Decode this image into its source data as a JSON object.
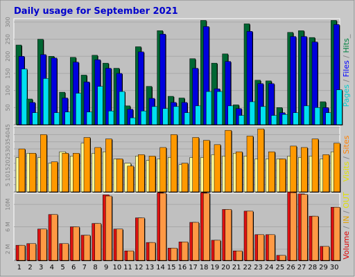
{
  "chart_data": {
    "type": "bar",
    "title": "Daily usage for September 2021",
    "categories": [
      "1",
      "2",
      "3",
      "4",
      "5",
      "6",
      "7",
      "8",
      "9",
      "10",
      "11",
      "12",
      "13",
      "14",
      "15",
      "16",
      "17",
      "18",
      "19",
      "20",
      "21",
      "22",
      "23",
      "24",
      "25",
      "26",
      "27",
      "28",
      "29",
      "30"
    ],
    "weekend_days": [
      "4",
      "5",
      "11",
      "12",
      "18",
      "19",
      "25",
      "26"
    ],
    "panels": [
      {
        "id": "hits",
        "ylim": [
          0,
          310
        ],
        "yticks": [
          50,
          100,
          150,
          200,
          250,
          300
        ],
        "side_label_parts": [
          {
            "text": "Pages",
            "color": "#00cccc"
          },
          {
            "text": " / ",
            "color": "#808080"
          },
          {
            "text": "Files",
            "color": "#0000ff"
          },
          {
            "text": " / ",
            "color": "#808080"
          },
          {
            "text": "Hits",
            "color": "#008040"
          },
          {
            "text": "_",
            "color": "#808080"
          }
        ],
        "series": [
          {
            "name": "Hits",
            "color": "#006633",
            "values": [
              233,
              75,
              250,
              200,
              95,
              197,
              145,
              203,
              180,
              165,
              55,
              228,
              112,
              275,
              83,
              78,
              193,
              305,
              180,
              207,
              58,
              295,
              130,
              128,
              50,
              270,
              275,
              255,
              67,
              305
            ]
          },
          {
            "name": "Files",
            "color": "#0000dd",
            "values": [
              200,
              65,
              205,
              195,
              78,
              183,
              125,
              190,
              165,
              150,
              45,
              213,
              77,
              265,
              65,
              65,
              165,
              287,
              105,
              185,
              47,
              273,
              120,
              120,
              35,
              258,
              258,
              242,
              50,
              293
            ]
          },
          {
            "name": "Pages",
            "color": "#00e0f0",
            "values": [
              163,
              35,
              135,
              35,
              37,
              92,
              37,
              112,
              40,
              97,
              20,
              40,
              53,
              47,
              53,
              35,
              55,
              97,
              97,
              55,
              27,
              67,
              53,
              27,
              30,
              35,
              55,
              50,
              35,
              102
            ]
          }
        ]
      },
      {
        "id": "visits",
        "ylim": [
          0,
          46
        ],
        "yticks": [
          5,
          10,
          15,
          20,
          25,
          30,
          35,
          40,
          45
        ],
        "side_label_parts": [
          {
            "text": "Visits",
            "color": "#e0e000"
          },
          {
            "text": " / ",
            "color": "#808080"
          },
          {
            "text": "Sites",
            "color": "#ff8000"
          }
        ],
        "series": [
          {
            "name": "Visits",
            "color": "#ffff99",
            "values": [
              24,
              27,
              24,
              20,
              28,
              25,
              34,
              27,
              28,
              23,
              20,
              25,
              22,
              23,
              24,
              19,
              24,
              24,
              26,
              25,
              27,
              25,
              23,
              23,
              23,
              25,
              24,
              25,
              23,
              28
            ]
          },
          {
            "name": "Sites",
            "color": "#ff9900",
            "values": [
              30,
              27,
              40,
              21,
              27,
              27,
              38,
              31,
              37,
              23,
              18,
              26,
              25,
              31,
              40,
              20,
              38,
              36,
              33,
              43,
              28,
              39,
              44,
              28,
              23,
              32,
              31,
              37,
              26,
              34
            ]
          }
        ]
      },
      {
        "id": "volume",
        "ylim": [
          0,
          12000000
        ],
        "yticks": [
          2000000,
          6000000,
          10000000
        ],
        "ytick_labels": [
          "2 M",
          "6 M",
          "10M"
        ],
        "side_label_parts": [
          {
            "text": "Volume",
            "color": "#dd0000"
          },
          {
            "text": " / ",
            "color": "#808080"
          },
          {
            "text": "IN",
            "color": "#e0a000"
          },
          {
            "text": " / ",
            "color": "#808080"
          },
          {
            "text": "OUT",
            "color": "#e0e000"
          }
        ],
        "series": [
          {
            "name": "Volume",
            "color": "#dd1111",
            "values": [
              2700000,
              3000000,
              5600000,
              8200000,
              3000000,
              6000000,
              4500000,
              6600000,
              11700000,
              5600000,
              1700000,
              7600000,
              3200000,
              12100000,
              2200000,
              3300000,
              6800000,
              12100000,
              3600000,
              9100000,
              1700000,
              8800000,
              4600000,
              4600000,
              900000,
              12200000,
              11900000,
              7900000,
              2500000,
              9500000
            ]
          },
          {
            "name": "OUT",
            "color": "#ff9944",
            "values": [
              2700000,
              3000000,
              5600000,
              8200000,
              3000000,
              6000000,
              4500000,
              6600000,
              11500000,
              5600000,
              1700000,
              7600000,
              3200000,
              12000000,
              2200000,
              3300000,
              6800000,
              12000000,
              3600000,
              9100000,
              1700000,
              8800000,
              4600000,
              4600000,
              900000,
              12100000,
              11800000,
              7900000,
              2500000,
              9500000
            ]
          }
        ]
      }
    ]
  }
}
